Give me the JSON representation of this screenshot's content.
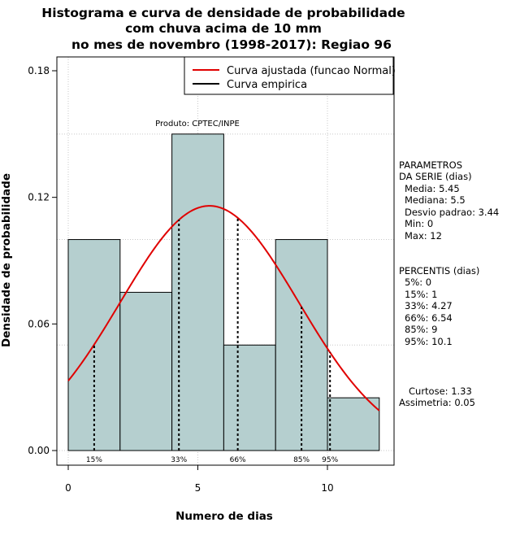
{
  "chart_data": {
    "type": "bar",
    "title_lines": [
      "Histograma e curva de densidade de probabilidade",
      "com chuva acima de 10 mm",
      "no mes de novembro (1998-2017): Regiao 96"
    ],
    "xlabel": "Numero de dias",
    "ylabel": "Densidade de probabilidade",
    "xlim": [
      -0.5,
      12.5
    ],
    "ylim": [
      0,
      0.18
    ],
    "x_ticks": [
      0,
      5,
      10
    ],
    "y_ticks": [
      0.0,
      0.06,
      0.12,
      0.18
    ],
    "y_tick_labels": [
      "0.00",
      "0.06",
      "0.12",
      "0.18"
    ],
    "grid": true,
    "bins": [
      {
        "start": 0,
        "end": 2,
        "density": 0.1
      },
      {
        "start": 2,
        "end": 4,
        "density": 0.075
      },
      {
        "start": 4,
        "end": 6,
        "density": 0.15
      },
      {
        "start": 6,
        "end": 8,
        "density": 0.05
      },
      {
        "start": 8,
        "end": 10,
        "density": 0.1
      },
      {
        "start": 10,
        "end": 12,
        "density": 0.025
      }
    ],
    "bar_color": "#b5cfcf",
    "fitted_curve": {
      "name": "Curva ajustada (funcao Normal)",
      "color": "#e00000",
      "mean": 5.45,
      "sd": 3.44,
      "x_from": 0,
      "x_to": 12
    },
    "empirical_curve": {
      "name": "Curva empirica",
      "color": "#000000"
    },
    "percentile_markers": [
      {
        "x": 1,
        "label": "15%"
      },
      {
        "x": 4.27,
        "label": "33%"
      },
      {
        "x": 6.54,
        "label": "66%"
      },
      {
        "x": 9,
        "label": "85%"
      },
      {
        "x": 10.1,
        "label": "95%"
      }
    ],
    "annotation": "Produto: CPTEC/INPE",
    "legend_position": "top-right"
  },
  "stats_panel": {
    "param_header": [
      "PARAMETROS",
      "DA SERIE (dias)"
    ],
    "params": [
      "Media: 5.45",
      "Mediana: 5.5",
      "Desvio padrao: 3.44",
      "Min: 0",
      "Max: 12"
    ],
    "pct_header": "PERCENTIS (dias)",
    "percentiles": [
      "5%: 0",
      "15%: 1",
      "33%: 4.27",
      "66%: 6.54",
      "85%: 9",
      "95%: 10.1"
    ],
    "extra": [
      "Curtose: 1.33",
      "Assimetria: 0.05"
    ]
  }
}
